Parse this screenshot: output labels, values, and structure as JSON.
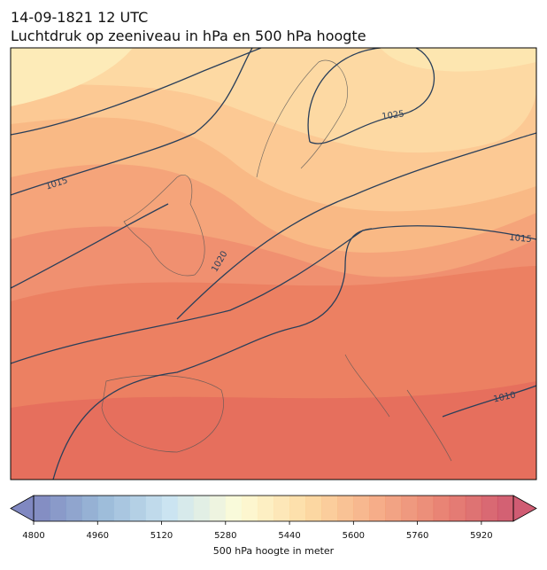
{
  "header": {
    "title": "14-09-1821 12 UTC",
    "subtitle": "Luchtdruk op zeeniveau in hPa en 500 hPa hoogte"
  },
  "map": {
    "isobar_labels": [
      1025,
      1015,
      1020,
      1015,
      1010
    ]
  },
  "colorbar": {
    "label": "500 hPa hoogte in meter",
    "lim": [
      4800,
      6000
    ],
    "step": 40,
    "ticks": [
      4800,
      4960,
      5120,
      5280,
      5440,
      5600,
      5760,
      5920
    ],
    "colors": [
      "#6a73b6",
      "#8aaed2",
      "#c3e0ee",
      "#fdfbd0",
      "#fdd495",
      "#f4a074",
      "#e46c5c",
      "#c8405a"
    ]
  }
}
